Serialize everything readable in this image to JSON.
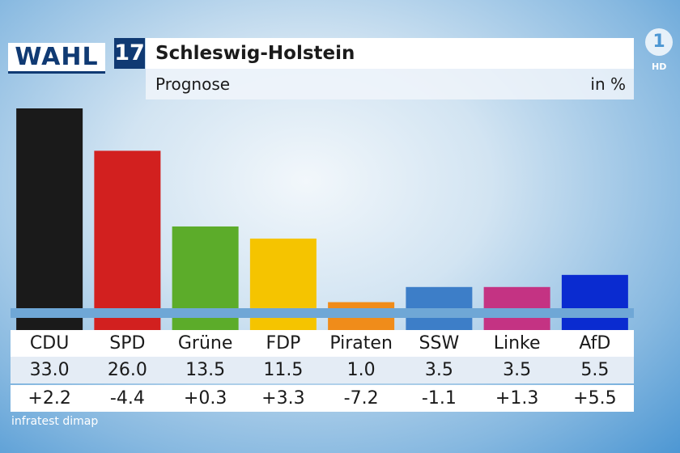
{
  "header": {
    "logo_text": "WAHL",
    "logo_number": "17",
    "title": "Schleswig-Holstein",
    "subtitle": "Prognose",
    "unit": "in %"
  },
  "broadcaster": {
    "logo": "1",
    "hd": "HD"
  },
  "source": "infratest dimap",
  "chart_data": {
    "type": "bar",
    "title": "Schleswig-Holstein",
    "subtitle": "Prognose",
    "ylabel": "in %",
    "categories": [
      "CDU",
      "SPD",
      "Grüne",
      "FDP",
      "Piraten",
      "SSW",
      "Linke",
      "AfD"
    ],
    "values": [
      33.0,
      26.0,
      13.5,
      11.5,
      1.0,
      3.5,
      3.5,
      5.5
    ],
    "changes": [
      2.2,
      -4.4,
      0.3,
      3.3,
      -7.2,
      -1.1,
      1.3,
      5.5
    ],
    "colors": [
      "#1a1a1a",
      "#d2201f",
      "#5cac2a",
      "#f5c400",
      "#f08c1a",
      "#3d7ec8",
      "#c43383",
      "#0a2bd0"
    ],
    "ylim": [
      0,
      33.0
    ]
  },
  "table": {
    "values_text": [
      "33.0",
      "26.0",
      "13.5",
      "11.5",
      "1.0",
      "3.5",
      "3.5",
      "5.5"
    ],
    "changes_text": [
      "+2.2",
      "-4.4",
      "+0.3",
      "+3.3",
      "-7.2",
      "-1.1",
      "+1.3",
      "+5.5"
    ]
  }
}
